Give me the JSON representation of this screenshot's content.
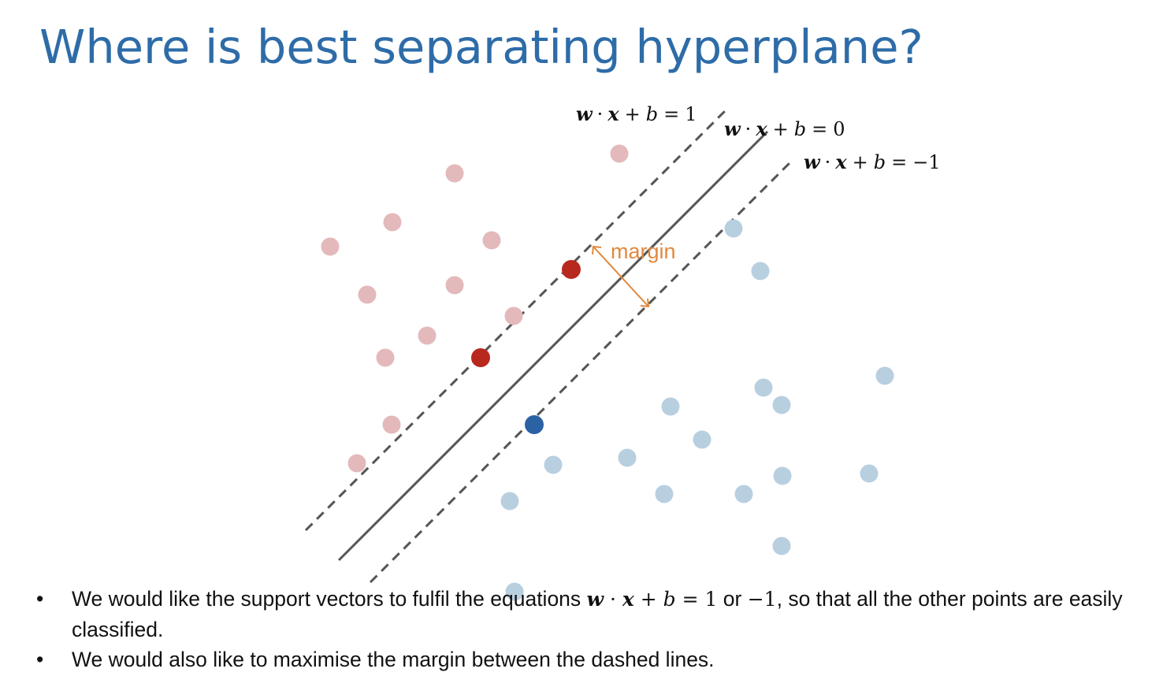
{
  "title": "Where is best separating hyperplane?",
  "equations": {
    "plus_one": {
      "w": "w",
      "dot": "·",
      "x": "x",
      "plus": "+",
      "b": "b",
      "eq": "=",
      "rhs": "1"
    },
    "zero": {
      "w": "w",
      "dot": "·",
      "x": "x",
      "plus": "+",
      "b": "b",
      "eq": "=",
      "rhs": "0"
    },
    "minus_one": {
      "w": "w",
      "dot": "·",
      "x": "x",
      "plus": "+",
      "b": "b",
      "eq": "=",
      "rhs": "−1"
    }
  },
  "margin_label": "margin",
  "colors": {
    "title": "#2e6ca8",
    "class_a_faded": "#e3b9bb",
    "class_b_faded": "#b8cfe0",
    "support_vector_a": "#b8281e",
    "support_vector_b": "#2a62a4",
    "margin_arrow": "#e0893f",
    "line": "#555555"
  },
  "bullets": [
    {
      "marker": "•",
      "text_before": "We would like the support vectors to fulfil the equations ",
      "math_w": "w",
      "math_dot": " · ",
      "math_x": "x",
      "math_plus": " + ",
      "math_b": "b",
      "math_eq": " = 1",
      "text_or": " or ",
      "math_neg": "−1",
      "text_after": ", so that all the other points are easily classified."
    },
    {
      "marker": "•",
      "text": "We would also like to maximise the margin between the dashed lines."
    }
  ]
}
